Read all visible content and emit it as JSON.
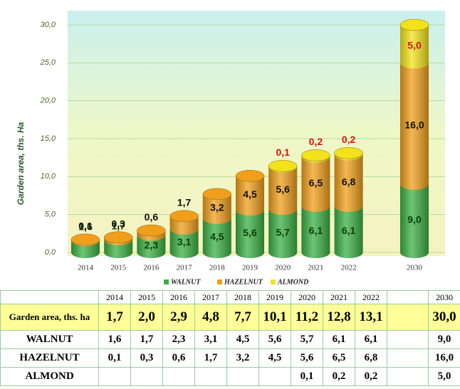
{
  "chart_data": {
    "type": "stacked-cylinder",
    "y_label": "Garden area, ths. Ha",
    "categories": [
      "2014",
      "2015",
      "2016",
      "2017",
      "2018",
      "2019",
      "2020",
      "2021",
      "2022",
      "2030"
    ],
    "series": [
      {
        "name": "WALNUT",
        "color": "#3cb043",
        "label_color": "#0b3d0b",
        "values": [
          1.6,
          1.7,
          2.3,
          3.1,
          4.5,
          5.6,
          5.7,
          6.1,
          6.1,
          9.0
        ],
        "value_labels": [
          "1,6",
          "1,7",
          "2,3",
          "3,1",
          "4,5",
          "5,6",
          "5,7",
          "6,1",
          "6,1",
          "9,0"
        ]
      },
      {
        "name": "HAZELNUT",
        "color": "#ef9f1c",
        "label_color": "#111111",
        "values": [
          0.1,
          0.3,
          0.6,
          1.7,
          3.2,
          4.5,
          5.6,
          6.5,
          6.8,
          16.0
        ],
        "value_labels": [
          "0,1",
          "0,3",
          "0,6",
          "1,7",
          "3,2",
          "4,5",
          "5,6",
          "6,5",
          "6,8",
          "16,0"
        ]
      },
      {
        "name": "ALMOND",
        "color": "#f2e21c",
        "label_color": "#e01010",
        "values": [
          null,
          null,
          null,
          null,
          null,
          null,
          0.1,
          0.2,
          0.2,
          5.0
        ],
        "value_labels": [
          null,
          null,
          null,
          null,
          null,
          null,
          "0,1",
          "0,2",
          "0,2",
          "5,0"
        ]
      }
    ],
    "ylim": [
      0,
      30
    ],
    "yticks": [
      {
        "value": 0,
        "label": "0,0"
      },
      {
        "value": 5,
        "label": "5,0"
      },
      {
        "value": 10,
        "label": "10,0"
      },
      {
        "value": 15,
        "label": "15,0"
      },
      {
        "value": 20,
        "label": "20,0"
      },
      {
        "value": 25,
        "label": "25,0"
      },
      {
        "value": 30,
        "label": "30,0"
      }
    ],
    "grid": true,
    "legend": "bottom"
  },
  "table": {
    "columns": [
      "2014",
      "2015",
      "2016",
      "2017",
      "2018",
      "2019",
      "2020",
      "2021",
      "2022",
      "2030"
    ],
    "rows": [
      {
        "label": "Garden area, ths. ha",
        "cells": [
          "1,7",
          "2,0",
          "2,9",
          "4,8",
          "7,7",
          "10,1",
          "11,2",
          "12,8",
          "13,1",
          "30,0"
        ]
      },
      {
        "label": "WALNUT",
        "cells": [
          "1,6",
          "1,7",
          "2,3",
          "3,1",
          "4,5",
          "5,6",
          "5,7",
          "6,1",
          "6,1",
          "9,0"
        ]
      },
      {
        "label": "HAZELNUT",
        "cells": [
          "0,1",
          "0,3",
          "0,6",
          "1,7",
          "3,2",
          "4,5",
          "5,6",
          "6,5",
          "6,8",
          "16,0"
        ]
      },
      {
        "label": "ALMOND",
        "cells": [
          null,
          null,
          null,
          null,
          null,
          null,
          "0,1",
          "0,2",
          "0,2",
          "5,0"
        ]
      }
    ]
  }
}
